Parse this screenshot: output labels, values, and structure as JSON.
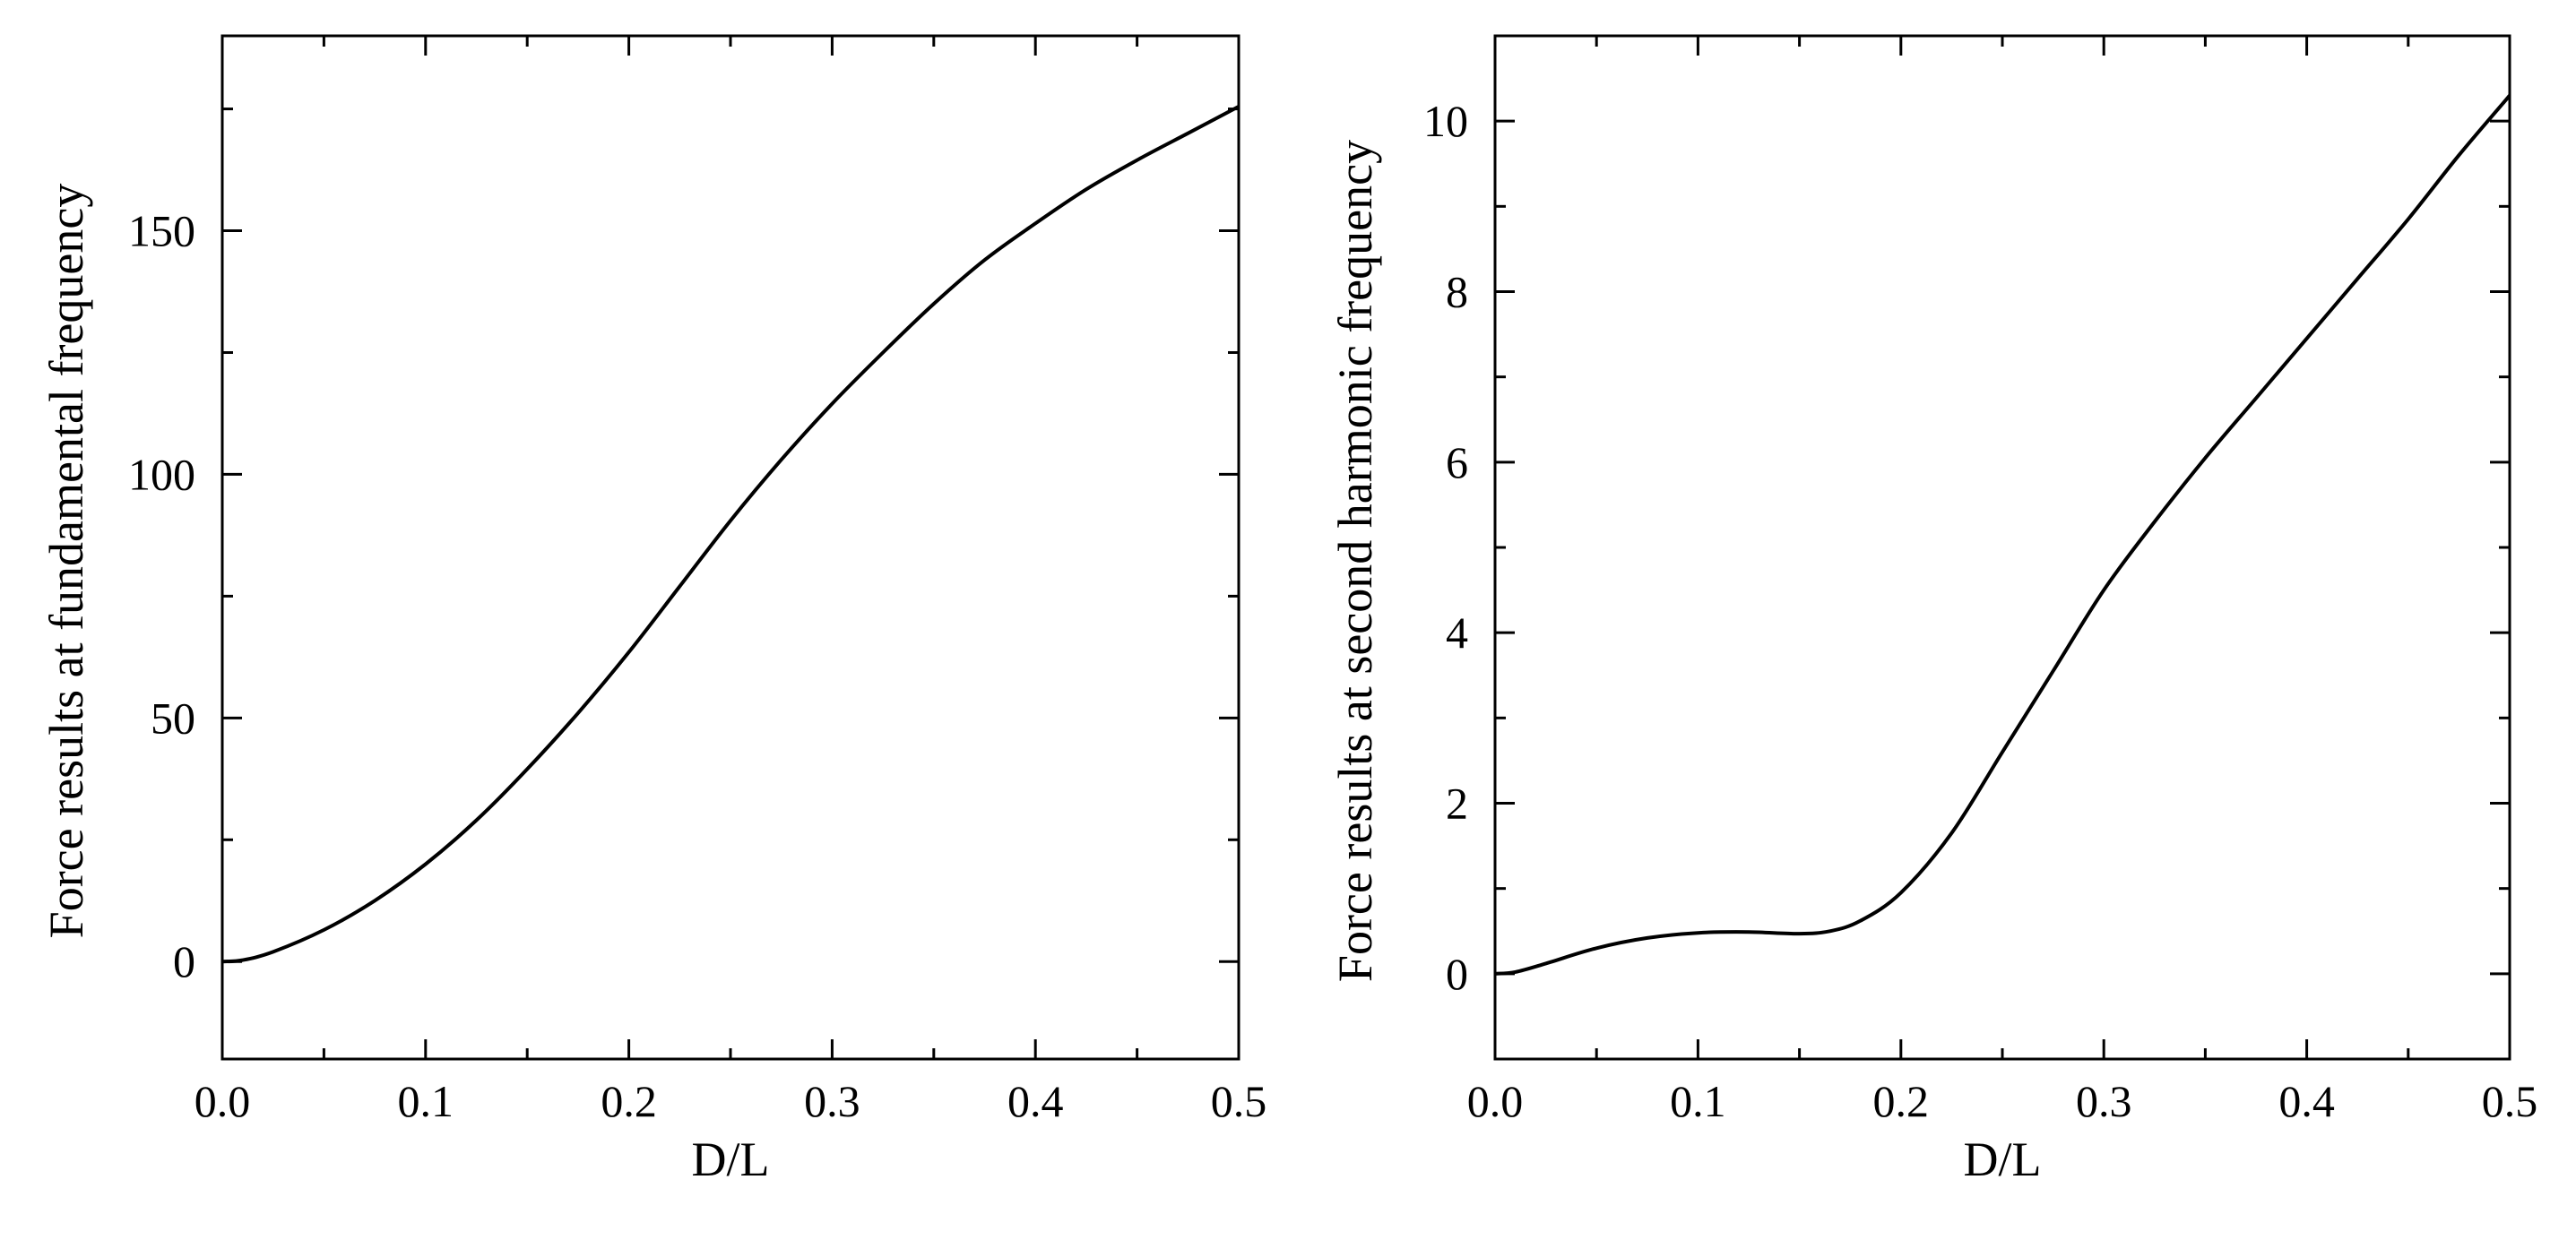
{
  "chart_data": [
    {
      "type": "line",
      "xlabel": "D/L",
      "ylabel": "Force results at fundamental frequency",
      "xlim": [
        0.0,
        0.5
      ],
      "ylim": [
        -20,
        190
      ],
      "xticks": [
        "0.0",
        "0.1",
        "0.2",
        "0.3",
        "0.4",
        "0.5"
      ],
      "yticks": [
        "0",
        "50",
        "100",
        "150"
      ],
      "grid": false,
      "series": [
        {
          "color": "#000000",
          "x": [
            0.0,
            0.01,
            0.025,
            0.05,
            0.075,
            0.1,
            0.125,
            0.15,
            0.175,
            0.2,
            0.225,
            0.25,
            0.275,
            0.3,
            0.325,
            0.35,
            0.375,
            0.4,
            0.425,
            0.45,
            0.475,
            0.5
          ],
          "y": [
            0.0,
            0.3,
            2.0,
            6.5,
            12.5,
            20.0,
            29.0,
            39.5,
            51.0,
            63.5,
            77.0,
            90.5,
            103.0,
            114.5,
            125.0,
            135.0,
            144.0,
            151.5,
            158.5,
            164.5,
            170.0,
            175.5
          ]
        }
      ]
    },
    {
      "type": "line",
      "xlabel": "D/L",
      "ylabel": "Force results at second harmonic frequency",
      "xlim": [
        0.0,
        0.5
      ],
      "ylim": [
        -1.0,
        11.0
      ],
      "xticks": [
        "0.0",
        "0.1",
        "0.2",
        "0.3",
        "0.4",
        "0.5"
      ],
      "yticks": [
        "0",
        "2",
        "4",
        "6",
        "8",
        "10"
      ],
      "grid": false,
      "series": [
        {
          "color": "#000000",
          "x": [
            0.0,
            0.01,
            0.025,
            0.05,
            0.075,
            0.1,
            0.125,
            0.15,
            0.165,
            0.18,
            0.2,
            0.225,
            0.25,
            0.275,
            0.3,
            0.325,
            0.35,
            0.375,
            0.4,
            0.425,
            0.45,
            0.475,
            0.5
          ],
          "y": [
            0.0,
            0.02,
            0.12,
            0.3,
            0.42,
            0.48,
            0.49,
            0.47,
            0.5,
            0.62,
            0.95,
            1.65,
            2.6,
            3.55,
            4.5,
            5.3,
            6.05,
            6.75,
            7.45,
            8.15,
            8.85,
            9.6,
            10.3
          ]
        }
      ]
    }
  ]
}
